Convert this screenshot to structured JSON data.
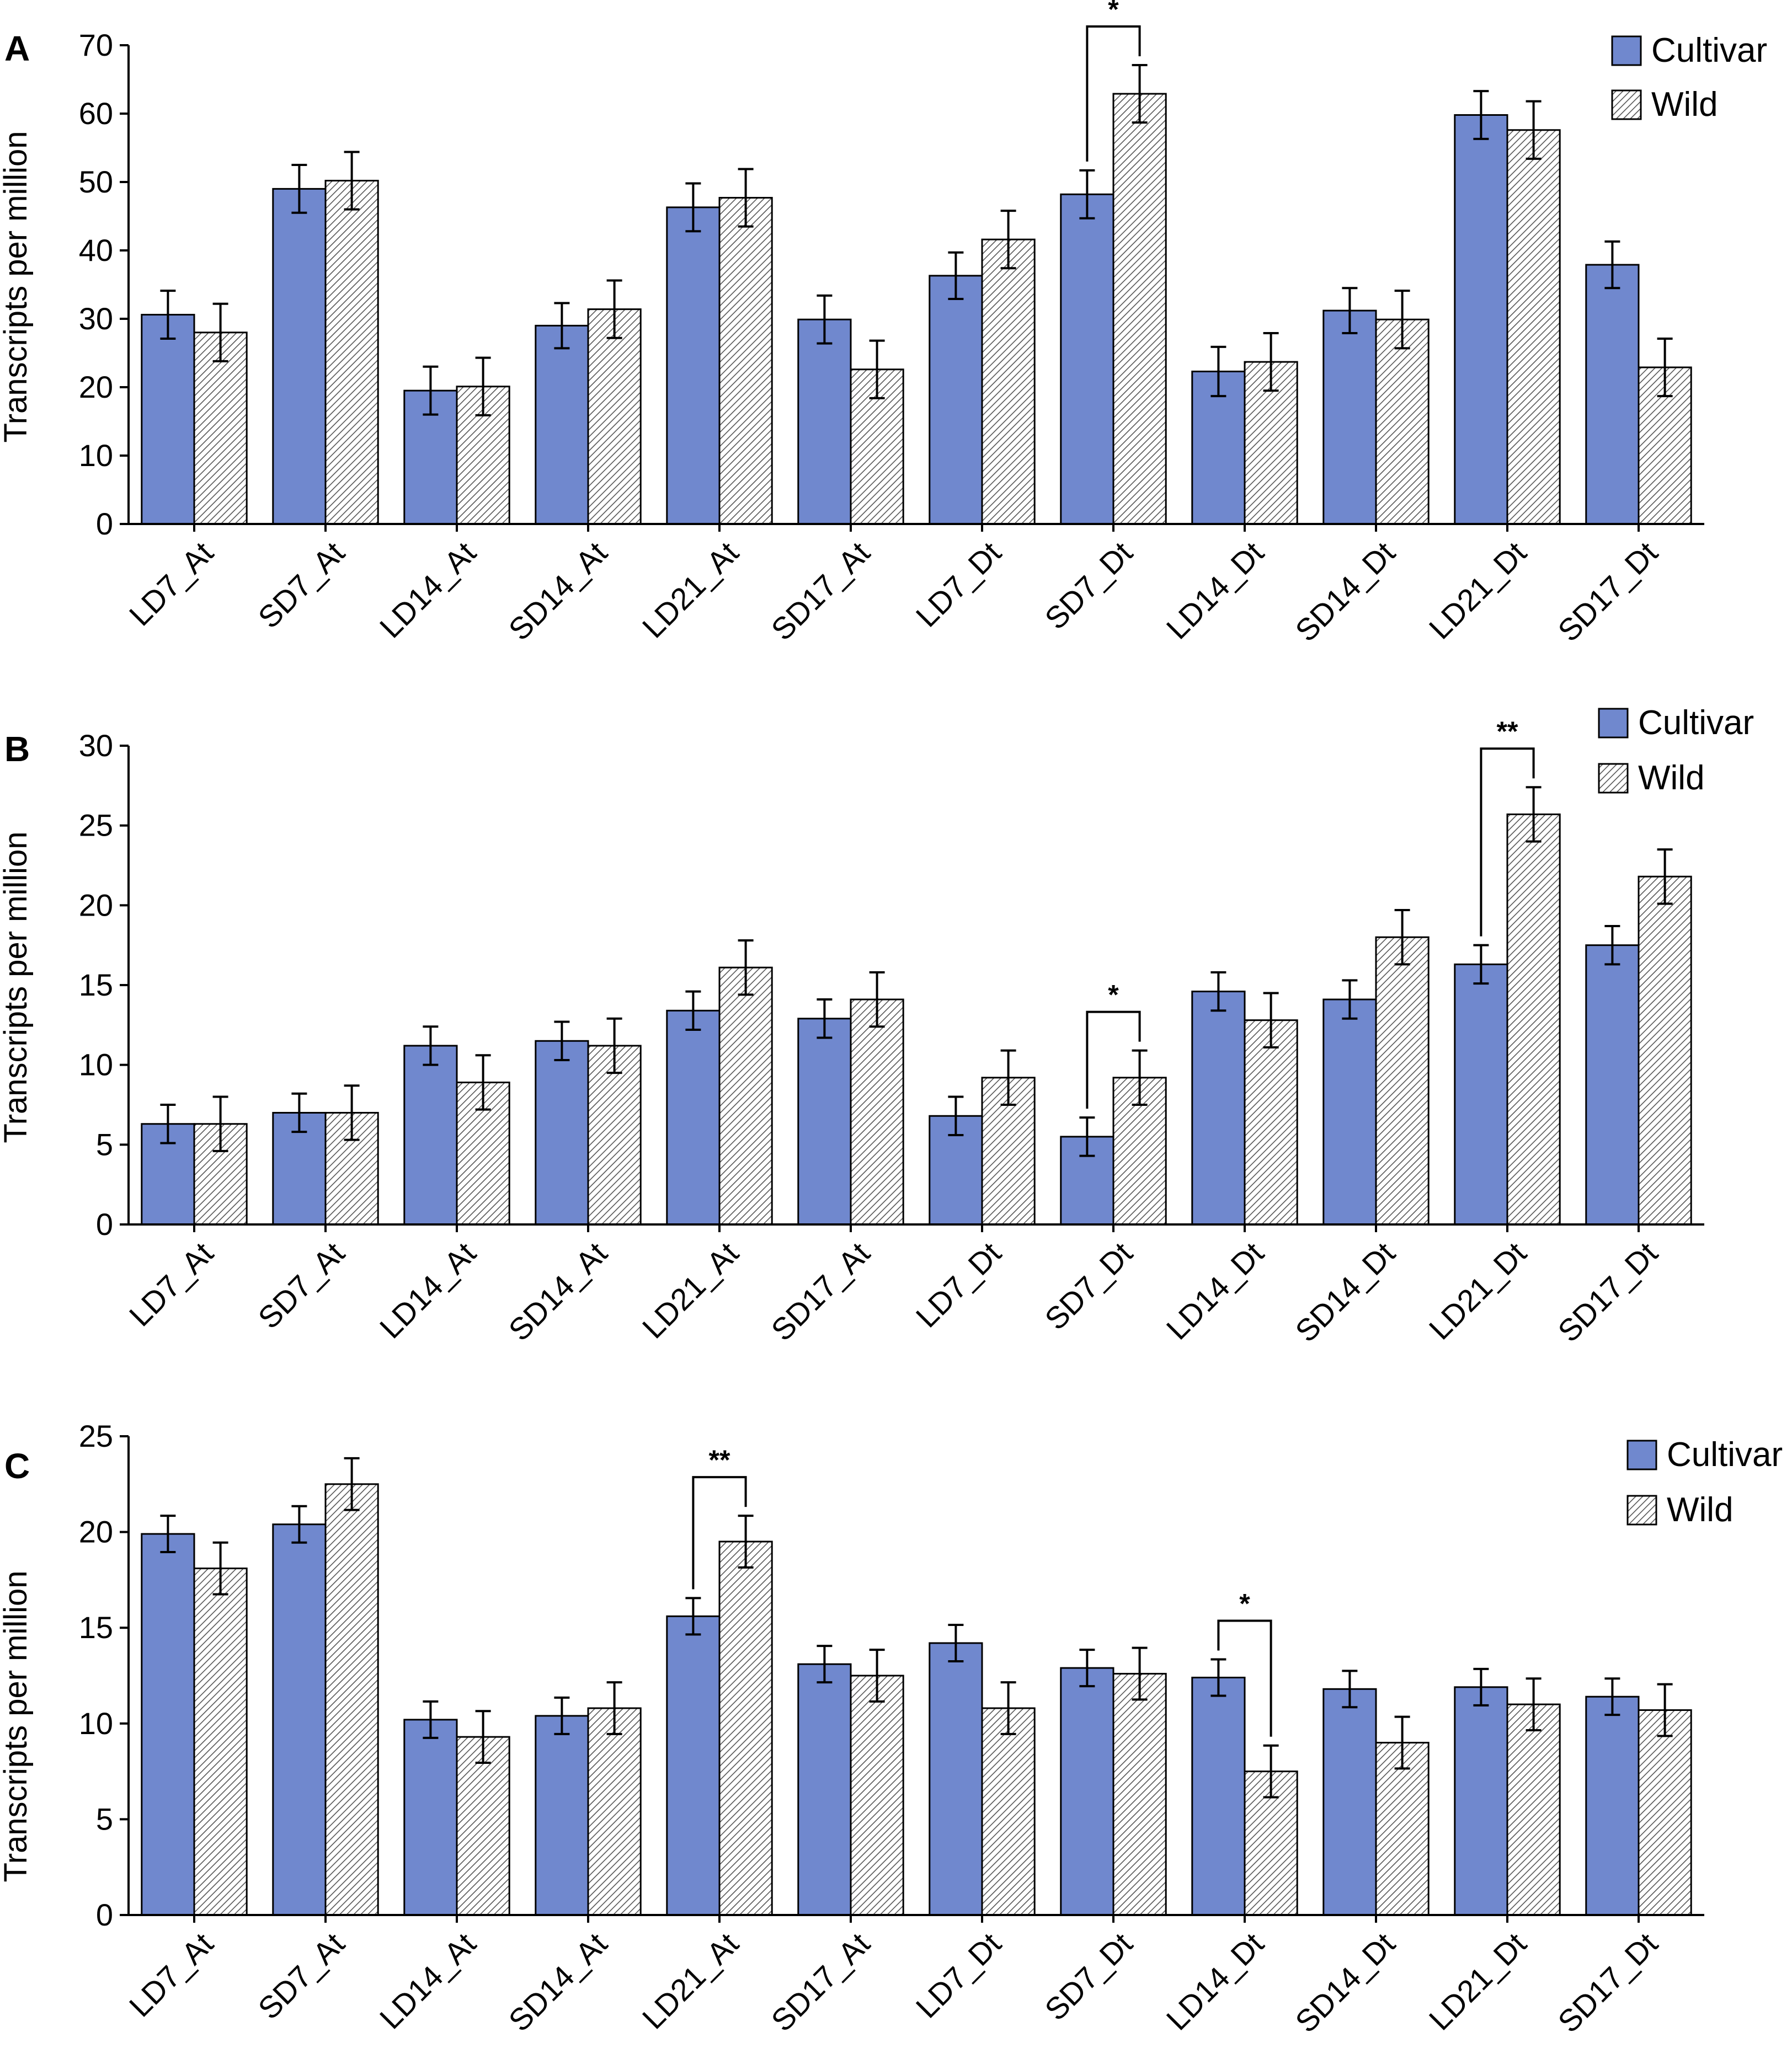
{
  "colors": {
    "cultivar": "#7088ce",
    "wild_hatch": "#555555",
    "axis": "#000000"
  },
  "legend": {
    "cultivar": "Cultivar",
    "wild": "Wild"
  },
  "chart_data": [
    {
      "type": "bar",
      "panel": "A",
      "ylabel": "Transcripts per million",
      "ylim": [
        0,
        70
      ],
      "yticks": [
        0,
        10,
        20,
        30,
        40,
        50,
        60,
        70
      ],
      "categories": [
        "LD7_At",
        "SD7_At",
        "LD14_At",
        "SD14_At",
        "LD21_At",
        "SD17_At",
        "LD7_Dt",
        "SD7_Dt",
        "LD14_Dt",
        "SD14_Dt",
        "LD21_Dt",
        "SD17_Dt"
      ],
      "series": [
        {
          "name": "Cultivar",
          "values": [
            30.6,
            49.0,
            19.5,
            29.0,
            46.3,
            29.9,
            36.3,
            48.2,
            22.3,
            31.2,
            59.8,
            37.9
          ],
          "errors": [
            3.5,
            3.5,
            3.5,
            3.3,
            3.5,
            3.5,
            3.4,
            3.5,
            3.6,
            3.3,
            3.5,
            3.4
          ]
        },
        {
          "name": "Wild",
          "values": [
            28.0,
            50.2,
            20.1,
            31.4,
            47.7,
            22.6,
            41.6,
            62.9,
            23.7,
            29.9,
            57.6,
            22.9
          ],
          "errors": [
            4.2,
            4.2,
            4.2,
            4.2,
            4.2,
            4.2,
            4.2,
            4.2,
            4.2,
            4.2,
            4.2,
            4.2
          ]
        }
      ],
      "significance": [
        {
          "category": "SD7_Dt",
          "label": "*"
        }
      ]
    },
    {
      "type": "bar",
      "panel": "B",
      "ylabel": "Transcripts per million",
      "ylim": [
        0,
        30
      ],
      "yticks": [
        0,
        5,
        10,
        15,
        20,
        25,
        30
      ],
      "categories": [
        "LD7_At",
        "SD7_At",
        "LD14_At",
        "SD14_At",
        "LD21_At",
        "SD17_At",
        "LD7_Dt",
        "SD7_Dt",
        "LD14_Dt",
        "SD14_Dt",
        "LD21_Dt",
        "SD17_Dt"
      ],
      "series": [
        {
          "name": "Cultivar",
          "values": [
            6.3,
            7.0,
            11.2,
            11.5,
            13.4,
            12.9,
            6.8,
            5.5,
            14.6,
            14.1,
            16.3,
            17.5
          ],
          "errors": [
            1.2,
            1.2,
            1.2,
            1.2,
            1.2,
            1.2,
            1.2,
            1.2,
            1.2,
            1.2,
            1.2,
            1.2
          ]
        },
        {
          "name": "Wild",
          "values": [
            6.3,
            7.0,
            8.9,
            11.2,
            16.1,
            14.1,
            9.2,
            9.2,
            12.8,
            18.0,
            25.7,
            21.8
          ],
          "errors": [
            1.7,
            1.7,
            1.7,
            1.7,
            1.7,
            1.7,
            1.7,
            1.7,
            1.7,
            1.7,
            1.7,
            1.7
          ]
        }
      ],
      "significance": [
        {
          "category": "SD7_Dt",
          "label": "*"
        },
        {
          "category": "LD21_Dt",
          "label": "**"
        }
      ]
    },
    {
      "type": "bar",
      "panel": "C",
      "ylabel": "Transcripts per million",
      "ylim": [
        0,
        25
      ],
      "yticks": [
        0,
        5,
        10,
        15,
        20,
        25
      ],
      "categories": [
        "LD7_At",
        "SD7_At",
        "LD14_At",
        "SD14_At",
        "LD21_At",
        "SD17_At",
        "LD7_Dt",
        "SD7_Dt",
        "LD14_Dt",
        "SD14_Dt",
        "LD21_Dt",
        "SD17_Dt"
      ],
      "series": [
        {
          "name": "Cultivar",
          "values": [
            19.9,
            20.4,
            10.2,
            10.4,
            15.6,
            13.1,
            14.2,
            12.9,
            12.4,
            11.8,
            11.9,
            11.4
          ],
          "errors": [
            0.95,
            0.95,
            0.95,
            0.95,
            0.95,
            0.95,
            0.95,
            0.95,
            0.95,
            0.95,
            0.95,
            0.95
          ]
        },
        {
          "name": "Wild",
          "values": [
            18.1,
            22.5,
            9.3,
            10.8,
            19.5,
            12.5,
            10.8,
            12.6,
            7.5,
            9.0,
            11.0,
            10.7
          ],
          "errors": [
            1.35,
            1.35,
            1.35,
            1.35,
            1.35,
            1.35,
            1.35,
            1.35,
            1.35,
            1.35,
            1.35,
            1.35
          ]
        }
      ],
      "significance": [
        {
          "category": "LD21_At",
          "label": "**"
        },
        {
          "category": "LD14_Dt",
          "label": "*"
        }
      ]
    }
  ]
}
